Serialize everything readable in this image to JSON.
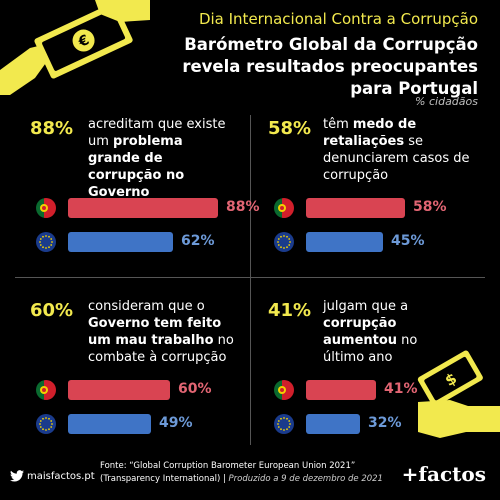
{
  "header": {
    "kicker": "Dia Internacional Contra a Corrupção",
    "headline": "Barómetro Global da Corrupção revela resultados preocupantes para Portugal",
    "unit_note": "% cidadãos"
  },
  "colors": {
    "accent": "#f2e94e",
    "portugal_bar": "#d94452",
    "eu_bar": "#3f74c6"
  },
  "chart_data": [
    {
      "type": "bar",
      "headline_value": "88%",
      "description_parts": [
        {
          "t": "acreditam que existe um ",
          "b": false
        },
        {
          "t": "problema grande de corrupção no Governo",
          "b": true
        }
      ],
      "series": [
        {
          "name": "Portugal",
          "values": [
            88
          ],
          "label": "88%"
        },
        {
          "name": "União Europeia",
          "values": [
            62
          ],
          "label": "62%"
        }
      ],
      "ylim": [
        0,
        100
      ]
    },
    {
      "type": "bar",
      "headline_value": "58%",
      "description_parts": [
        {
          "t": "têm ",
          "b": false
        },
        {
          "t": "medo de retaliações",
          "b": true
        },
        {
          "t": " se denunciarem casos de corrupção",
          "b": false
        }
      ],
      "series": [
        {
          "name": "Portugal",
          "values": [
            58
          ],
          "label": "58%"
        },
        {
          "name": "União Europeia",
          "values": [
            45
          ],
          "label": "45%"
        }
      ],
      "ylim": [
        0,
        100
      ]
    },
    {
      "type": "bar",
      "headline_value": "60%",
      "description_parts": [
        {
          "t": "consideram que o ",
          "b": false
        },
        {
          "t": "Governo tem feito um mau trabalho",
          "b": true
        },
        {
          "t": " no combate à corrupção",
          "b": false
        }
      ],
      "series": [
        {
          "name": "Portugal",
          "values": [
            60
          ],
          "label": "60%"
        },
        {
          "name": "União Europeia",
          "values": [
            49
          ],
          "label": "49%"
        }
      ],
      "ylim": [
        0,
        100
      ]
    },
    {
      "type": "bar",
      "headline_value": "41%",
      "description_parts": [
        {
          "t": "julgam que a ",
          "b": false
        },
        {
          "t": "corrupção aumentou",
          "b": true
        },
        {
          "t": " no último ano",
          "b": false
        }
      ],
      "series": [
        {
          "name": "Portugal",
          "values": [
            41
          ],
          "label": "41%"
        },
        {
          "name": "União Europeia",
          "values": [
            32
          ],
          "label": "32%"
        }
      ],
      "ylim": [
        0,
        100
      ]
    }
  ],
  "footer": {
    "source_line1": "Fonte: “Global Corruption Barometer European Union 2021”",
    "source_line2_a": "(Transparency International) | ",
    "source_line2_b": "Produzido a 9 de dezembro de 2021",
    "brand_left": "maisfactos.pt",
    "brand_right": "+factos"
  },
  "icons": [
    "hand-euro-note-icon",
    "hand-money-icon",
    "portugal-flag-icon",
    "eu-flag-icon",
    "twitter-bird-icon"
  ]
}
